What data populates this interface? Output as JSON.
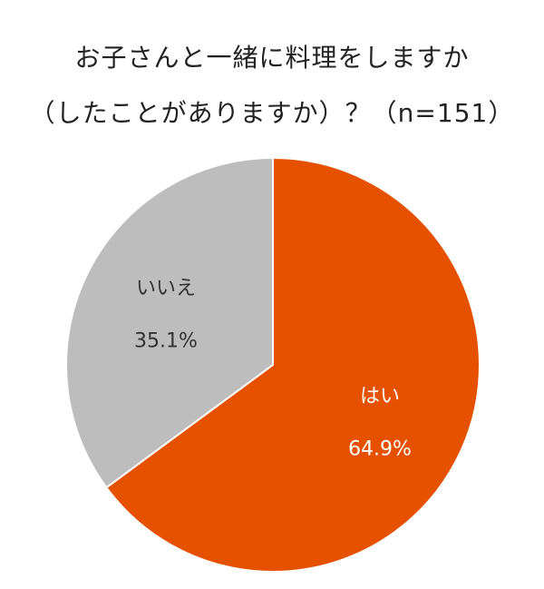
{
  "chart_data": {
    "type": "pie",
    "title": "お子さんと一緒に料理をしますか",
    "subtitle": "（したことがありますか）？（n=151）",
    "slices": [
      {
        "label": "はい",
        "value": 64.9,
        "value_label": "64.9%",
        "color": "#E65100",
        "text_color": "#ffffff"
      },
      {
        "label": "いいえ",
        "value": 35.1,
        "value_label": "35.1%",
        "color": "#BDBDBD",
        "text_color": "#333333"
      }
    ],
    "start_angle_deg": 0,
    "direction": "clockwise",
    "legend": "none"
  }
}
